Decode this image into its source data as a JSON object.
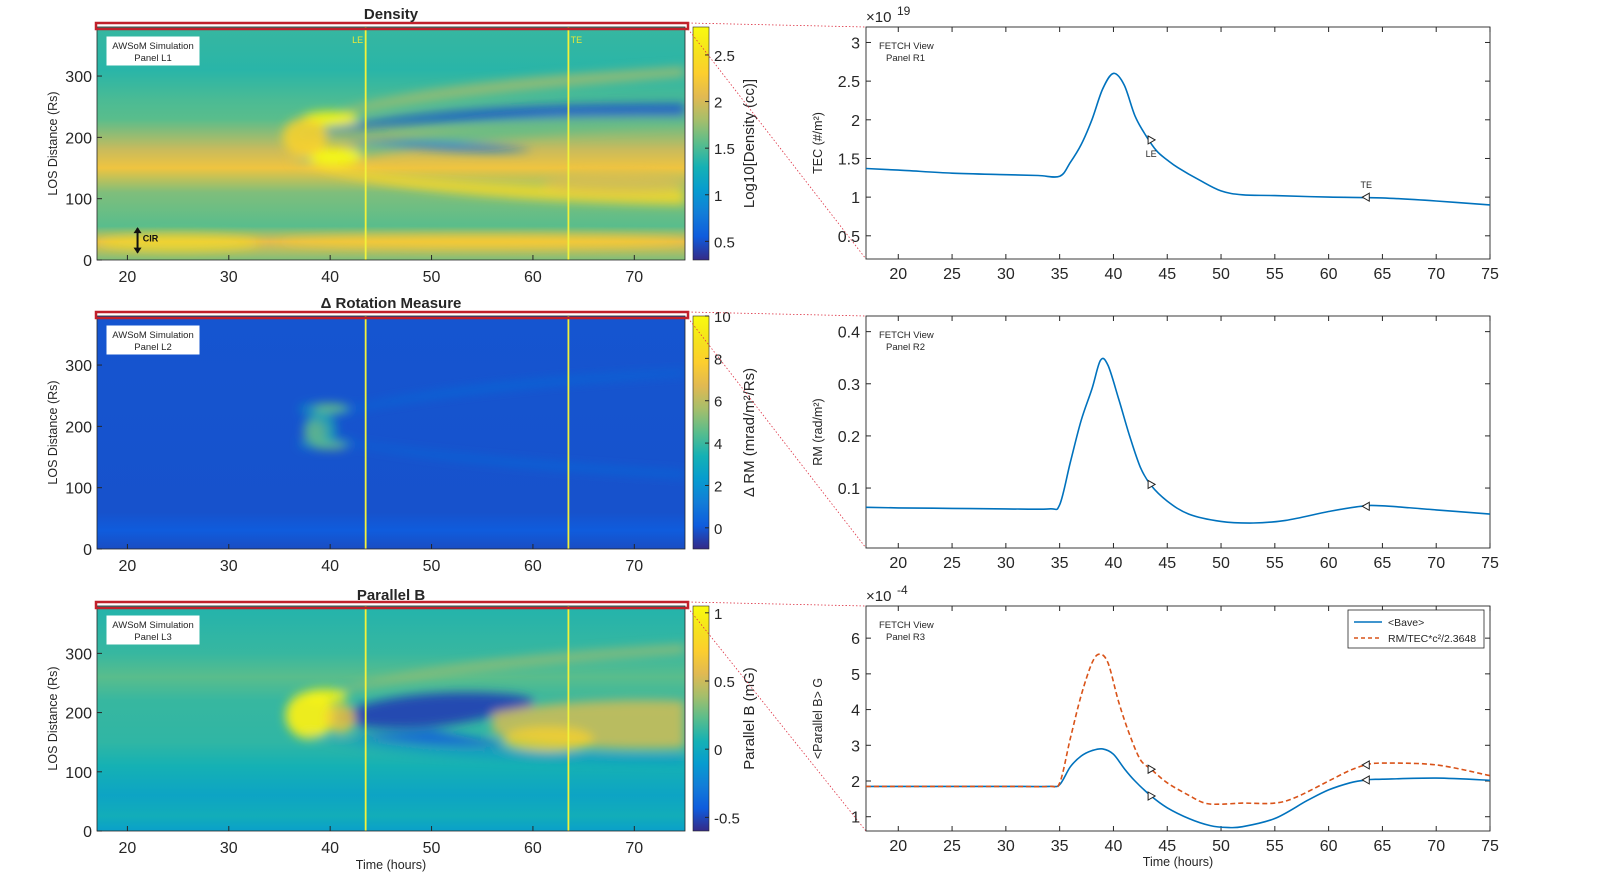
{
  "colors": {
    "line_blue": "#0072bd",
    "line_orange": "#d95319",
    "marker_yellow": "#f2f23a",
    "highlight_red": "#c0202a",
    "connector_red": "#dd3344",
    "axis": "#262626"
  },
  "left_panels": [
    {
      "title": "Density",
      "badge_line1": "AWSoM Simulation",
      "badge_line2": "Panel L1",
      "ylabel": "LOS Distance (Rs)",
      "xlabel": "",
      "x_ticks": [
        "20",
        "30",
        "40",
        "50",
        "60",
        "70"
      ],
      "y_ticks": [
        "0",
        "100",
        "200",
        "300"
      ],
      "colorbar_label": "Log10[Density (cc)]",
      "colorbar_ticks": [
        "0.5",
        "1",
        "1.5",
        "2",
        "2.5"
      ],
      "colorbar_range": [
        0.3,
        2.8
      ],
      "markers": [
        {
          "label": "LE",
          "time": 43.5
        },
        {
          "label": "TE",
          "time": 63.5
        }
      ],
      "annotation": "CIR",
      "colormap": "parula"
    },
    {
      "title": "Δ Rotation Measure",
      "badge_line1": "AWSoM Simulation",
      "badge_line2": "Panel L2",
      "ylabel": "LOS Distance (Rs)",
      "xlabel": "",
      "x_ticks": [
        "20",
        "30",
        "40",
        "50",
        "60",
        "70"
      ],
      "y_ticks": [
        "0",
        "100",
        "200",
        "300"
      ],
      "colorbar_label": "Δ RM (mrad/m²/Rs)",
      "colorbar_ticks": [
        "0",
        "2",
        "4",
        "6",
        "8",
        "10"
      ],
      "colorbar_range": [
        -1,
        10
      ],
      "markers": [
        {
          "label": "",
          "time": 43.5
        },
        {
          "label": "",
          "time": 63.5
        }
      ],
      "annotation": "",
      "colormap": "parula"
    },
    {
      "title": "Parallel B",
      "badge_line1": "AWSoM Simulation",
      "badge_line2": "Panel L3",
      "ylabel": "LOS Distance (Rs)",
      "xlabel": "Time (hours)",
      "x_ticks": [
        "20",
        "30",
        "40",
        "50",
        "60",
        "70"
      ],
      "y_ticks": [
        "0",
        "100",
        "200",
        "300"
      ],
      "colorbar_label": "Parallel B (mG)",
      "colorbar_ticks": [
        "-0.5",
        "0",
        "0.5",
        "1"
      ],
      "colorbar_range": [
        -0.6,
        1.05
      ],
      "markers": [
        {
          "label": "",
          "time": 43.5
        },
        {
          "label": "",
          "time": 63.5
        }
      ],
      "annotation": "",
      "colormap": "parula"
    }
  ],
  "chart_data": [
    {
      "type": "line",
      "panel": "R1",
      "badge_line1": "FETCH View",
      "badge_line2": "Panel R1",
      "exponent_label": "×10",
      "exponent_power": "19",
      "ylabel": "TEC (#/m²)",
      "xlabel": "",
      "xlim": [
        17,
        75
      ],
      "ylim": [
        0.2,
        3.2
      ],
      "x_ticks": [
        "20",
        "25",
        "30",
        "35",
        "40",
        "45",
        "50",
        "55",
        "60",
        "65",
        "70",
        "75"
      ],
      "y_ticks": [
        "0.5",
        "1",
        "1.5",
        "2",
        "2.5",
        "3"
      ],
      "series": [
        {
          "name": "TEC",
          "style": "solid",
          "x": [
            17,
            20,
            25,
            30,
            33,
            35,
            36,
            37,
            38,
            39,
            40,
            41,
            42,
            43,
            44,
            45,
            46,
            48,
            50,
            52,
            55,
            60,
            65,
            70,
            75
          ],
          "y": [
            1.37,
            1.35,
            1.31,
            1.29,
            1.28,
            1.27,
            1.45,
            1.68,
            2.0,
            2.4,
            2.6,
            2.45,
            2.05,
            1.8,
            1.6,
            1.48,
            1.38,
            1.22,
            1.08,
            1.03,
            1.02,
            1.0,
            0.99,
            0.95,
            0.9
          ]
        }
      ],
      "point_markers": [
        {
          "label": "LE",
          "x": 43.5,
          "y": 1.74,
          "dir": "right"
        },
        {
          "label": "TE",
          "x": 63.5,
          "y": 1.0,
          "dir": "left"
        }
      ]
    },
    {
      "type": "line",
      "panel": "R2",
      "badge_line1": "FETCH View",
      "badge_line2": "Panel R2",
      "exponent_label": "",
      "exponent_power": "",
      "ylabel": "RM (rad/m²)",
      "xlabel": "",
      "xlim": [
        17,
        75
      ],
      "ylim": [
        -0.015,
        0.43
      ],
      "x_ticks": [
        "20",
        "25",
        "30",
        "35",
        "40",
        "45",
        "50",
        "55",
        "60",
        "65",
        "70",
        "75"
      ],
      "y_ticks": [
        "0.1",
        "0.2",
        "0.3",
        "0.4"
      ],
      "series": [
        {
          "name": "RM",
          "style": "solid",
          "x": [
            17,
            20,
            25,
            30,
            34,
            35,
            36,
            37,
            38,
            38.8,
            39.5,
            40.5,
            41.5,
            42.5,
            43.5,
            45,
            47,
            50,
            53,
            56,
            60,
            63,
            65,
            70,
            75
          ],
          "y": [
            0.063,
            0.062,
            0.061,
            0.06,
            0.06,
            0.068,
            0.15,
            0.23,
            0.29,
            0.345,
            0.335,
            0.27,
            0.2,
            0.14,
            0.105,
            0.075,
            0.05,
            0.036,
            0.033,
            0.038,
            0.055,
            0.065,
            0.066,
            0.058,
            0.05
          ]
        }
      ],
      "point_markers": [
        {
          "label": "",
          "x": 43.5,
          "y": 0.107,
          "dir": "right"
        },
        {
          "label": "",
          "x": 63.5,
          "y": 0.065,
          "dir": "left"
        }
      ]
    },
    {
      "type": "line",
      "panel": "R3",
      "badge_line1": "FETCH View",
      "badge_line2": "Panel R3",
      "exponent_label": "×10",
      "exponent_power": "-4",
      "ylabel": "<Parallel B> G",
      "xlabel": "Time (hours)",
      "xlim": [
        17,
        75
      ],
      "ylim": [
        0.6,
        6.9
      ],
      "x_ticks": [
        "20",
        "25",
        "30",
        "35",
        "40",
        "45",
        "50",
        "55",
        "60",
        "65",
        "70",
        "75"
      ],
      "y_ticks": [
        "1",
        "2",
        "3",
        "4",
        "5",
        "6"
      ],
      "legend": [
        "<Bave>",
        "RM/TEC*c²/2.3648"
      ],
      "series": [
        {
          "name": "<Bave>",
          "style": "solid",
          "x": [
            17,
            20,
            25,
            30,
            34,
            35,
            36,
            37,
            38,
            39,
            40,
            41,
            42,
            43.5,
            45,
            47,
            49,
            50.5,
            52,
            55,
            58,
            60,
            62,
            63.5,
            65,
            70,
            75
          ],
          "y": [
            1.85,
            1.85,
            1.85,
            1.85,
            1.85,
            1.9,
            2.4,
            2.7,
            2.85,
            2.9,
            2.75,
            2.35,
            2.0,
            1.58,
            1.25,
            0.95,
            0.75,
            0.7,
            0.72,
            0.95,
            1.45,
            1.75,
            1.95,
            2.03,
            2.05,
            2.08,
            2.02
          ]
        },
        {
          "name": "RM/TEC*c²/2.3648",
          "style": "dashed",
          "x": [
            17,
            20,
            25,
            30,
            34,
            35,
            36,
            37,
            38,
            38.7,
            39.5,
            40.5,
            41.5,
            42.5,
            43.5,
            45,
            47,
            48.5,
            50,
            52,
            55,
            57,
            60,
            62,
            63.5,
            65,
            70,
            75
          ],
          "y": [
            1.85,
            1.85,
            1.85,
            1.85,
            1.85,
            1.95,
            3.2,
            4.4,
            5.3,
            5.55,
            5.3,
            4.2,
            3.3,
            2.6,
            2.33,
            1.95,
            1.6,
            1.38,
            1.35,
            1.38,
            1.38,
            1.55,
            2.0,
            2.3,
            2.45,
            2.5,
            2.45,
            2.15
          ]
        }
      ],
      "point_markers": [
        {
          "label": "",
          "x": 43.5,
          "y": 1.58,
          "dir": "right"
        },
        {
          "label": "",
          "x": 43.5,
          "y": 2.33,
          "dir": "right"
        },
        {
          "label": "",
          "x": 63.5,
          "y": 2.03,
          "dir": "left"
        },
        {
          "label": "",
          "x": 63.5,
          "y": 2.45,
          "dir": "left"
        }
      ]
    }
  ]
}
